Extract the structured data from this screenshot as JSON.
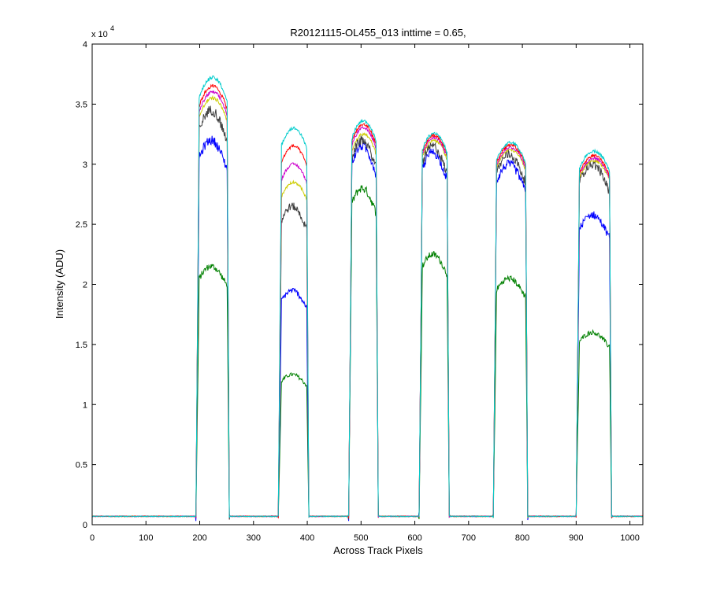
{
  "chart_data": {
    "type": "line",
    "title": "R20121115-OL455_013 inttime = 0.65,",
    "xlabel": "Across Track Pixels",
    "ylabel": "Intensity (ADU)",
    "y_exponent_label": "x 10",
    "y_exponent_power": "4",
    "xlim": [
      0,
      1024
    ],
    "ylim": [
      0,
      40000
    ],
    "xticks": [
      0,
      100,
      200,
      300,
      400,
      500,
      600,
      700,
      800,
      900,
      1000
    ],
    "xtick_labels": [
      "0",
      "100",
      "200",
      "300",
      "400",
      "500",
      "600",
      "700",
      "800",
      "900",
      "1000"
    ],
    "yticks": [
      0,
      5000,
      10000,
      15000,
      20000,
      25000,
      30000,
      35000,
      40000
    ],
    "ytick_labels": [
      "0",
      "0.5",
      "1",
      "1.5",
      "2",
      "2.5",
      "3",
      "3.5",
      "4"
    ],
    "grid": false,
    "baseline": 700,
    "bands": [
      {
        "x_start": 193,
        "x_end": 255
      },
      {
        "x_start": 346,
        "x_end": 403
      },
      {
        "x_start": 477,
        "x_end": 532
      },
      {
        "x_start": 608,
        "x_end": 664
      },
      {
        "x_start": 746,
        "x_end": 810
      },
      {
        "x_start": 900,
        "x_end": 966
      }
    ],
    "series": [
      {
        "color": "#008000",
        "levels": [
          21500,
          12500,
          28000,
          22500,
          20500,
          16000
        ]
      },
      {
        "color": "#0000ff",
        "levels": [
          32000,
          19500,
          31500,
          31000,
          30000,
          25800
        ]
      },
      {
        "color": "#404040",
        "levels": [
          34500,
          26500,
          32000,
          31500,
          30800,
          30000
        ]
      },
      {
        "color": "#cccc00",
        "levels": [
          35500,
          28500,
          32500,
          32000,
          31200,
          30300
        ]
      },
      {
        "color": "#cc00cc",
        "levels": [
          36000,
          30000,
          33000,
          32200,
          31400,
          30500
        ]
      },
      {
        "color": "#ff0000",
        "levels": [
          36500,
          31500,
          33300,
          32400,
          31600,
          30700
        ]
      },
      {
        "color": "#00cccc",
        "levels": [
          37200,
          33000,
          33600,
          32600,
          31800,
          31100
        ]
      }
    ]
  }
}
